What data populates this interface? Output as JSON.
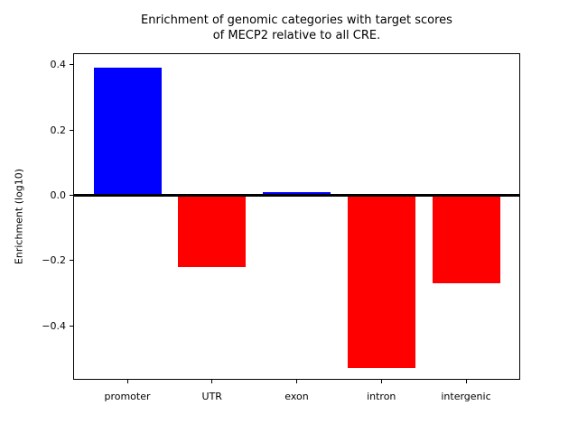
{
  "chart_data": {
    "type": "bar",
    "title": "Enrichment of genomic categories with target scores\nof MECP2 relative to all CRE.",
    "title_lines": [
      "Enrichment of genomic categories with target scores",
      "of MECP2 relative to all CRE."
    ],
    "xlabel": "",
    "ylabel": "Enrichment (log10)",
    "categories": [
      "promoter",
      "UTR",
      "exon",
      "intron",
      "intergenic"
    ],
    "values": [
      0.39,
      -0.22,
      0.01,
      -0.53,
      -0.27
    ],
    "bar_colors": [
      "#0000ff",
      "#ff0000",
      "#0000ff",
      "#ff0000",
      "#ff0000"
    ],
    "positive_color": "#0000ff",
    "negative_color": "#ff0000",
    "ylim": [
      -0.565,
      0.435
    ],
    "yticks": [
      0.4,
      0.2,
      0.0,
      -0.2,
      -0.4
    ],
    "ytick_labels": [
      "0.4",
      "0.2",
      "0.0",
      "−0.2",
      "−0.4"
    ],
    "bar_width_fraction": 0.8,
    "grid": false,
    "legend": null,
    "zero_line": true,
    "axis_color": "#000000",
    "background_color": "#ffffff"
  }
}
